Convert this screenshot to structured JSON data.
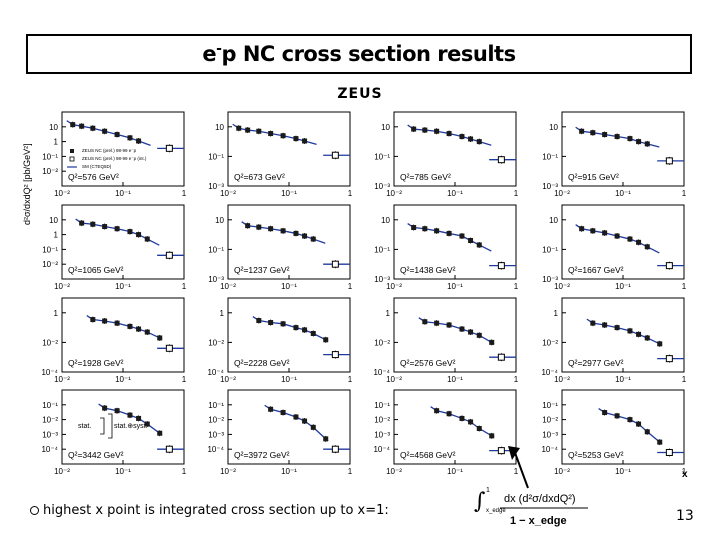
{
  "title": {
    "main": "e p NC cross section results",
    "sup": "-"
  },
  "experiment": "ZEUS",
  "y_axis_label": "d²σ/dxdQ² [pb/GeV²]",
  "x_axis_letter": "x",
  "legend": {
    "filled": "ZEUS NC (prel.) 98-99 e⁻p",
    "open": "ZEUS NC (prel.) 98-99 e⁻p (int.)",
    "line": "SM (CTEQ5D)",
    "stat_label": "stat.",
    "stat_syst_label": "stat.⊕syst."
  },
  "footnote": "highest x point is integrated cross section up to x=1:",
  "formula": {
    "numerator": "dx (d²σ/dxdQ²)",
    "lower_limit": "x_edge",
    "upper_limit": "1",
    "denominator": "1 − x_edge"
  },
  "page_number": "13",
  "colors": {
    "line": "#1f3a9e",
    "marker": "#1a1a1a",
    "open_marker": "#ffffff"
  },
  "chart_data": [
    {
      "type": "scatter",
      "label": "Q²=576 GeV²",
      "log_x": true,
      "log_y": true,
      "xlim": [
        0.01,
        1
      ],
      "ylim": [
        0.001,
        100
      ],
      "yticks": [
        0.01,
        0.1,
        1,
        10
      ],
      "ytick_labels": [
        "10⁻²",
        "10⁻¹",
        "1",
        "10"
      ],
      "x": [
        0.015,
        0.021,
        0.032,
        0.05,
        0.08,
        0.13,
        0.18
      ],
      "y": [
        14,
        11,
        8,
        5,
        3,
        1.8,
        1.1
      ],
      "int_y": 0.35
    },
    {
      "type": "scatter",
      "label": "Q²=673 GeV²",
      "log_x": true,
      "log_y": true,
      "xlim": [
        0.01,
        1
      ],
      "ylim": [
        0.001,
        100
      ],
      "yticks": [
        0.001,
        0.1,
        10
      ],
      "ytick_labels": [
        "10⁻³",
        "10⁻¹",
        "10"
      ],
      "x": [
        0.015,
        0.021,
        0.032,
        0.05,
        0.08,
        0.13,
        0.18
      ],
      "y": [
        8,
        6,
        5,
        3.5,
        2.5,
        1.6,
        1.1
      ],
      "int_y": 0.12
    },
    {
      "type": "scatter",
      "label": "Q²=785 GeV²",
      "log_x": true,
      "log_y": true,
      "xlim": [
        0.01,
        1
      ],
      "ylim": [
        0.001,
        100
      ],
      "yticks": [
        0.001,
        0.1,
        10
      ],
      "ytick_labels": [
        "10⁻³",
        "10⁻¹",
        "10"
      ],
      "x": [
        0.021,
        0.032,
        0.05,
        0.08,
        0.13,
        0.18,
        0.25
      ],
      "y": [
        7,
        6,
        5,
        3.5,
        2.2,
        1.5,
        1.0
      ],
      "int_y": 0.06
    },
    {
      "type": "scatter",
      "label": "Q²=915 GeV²",
      "log_x": true,
      "log_y": true,
      "xlim": [
        0.01,
        1
      ],
      "ylim": [
        0.001,
        100
      ],
      "yticks": [
        0.001,
        0.1,
        10
      ],
      "ytick_labels": [
        "10⁻³",
        "10⁻¹",
        "10"
      ],
      "x": [
        0.021,
        0.032,
        0.05,
        0.08,
        0.13,
        0.18,
        0.25
      ],
      "y": [
        5,
        4,
        3,
        2.2,
        1.6,
        1.0,
        0.7
      ],
      "int_y": 0.05
    },
    {
      "type": "scatter",
      "label": "Q²=1065 GeV²",
      "log_x": true,
      "log_y": true,
      "xlim": [
        0.01,
        1
      ],
      "ylim": [
        0.001,
        100
      ],
      "yticks": [
        0.01,
        0.1,
        1,
        10
      ],
      "ytick_labels": [
        "10⁻²",
        "10⁻¹",
        "1",
        "10"
      ],
      "x": [
        0.021,
        0.032,
        0.05,
        0.08,
        0.13,
        0.18,
        0.25
      ],
      "y": [
        6,
        5,
        3.5,
        2.5,
        1.6,
        1.0,
        0.5
      ],
      "int_y": 0.04
    },
    {
      "type": "scatter",
      "label": "Q²=1237 GeV²",
      "log_x": true,
      "log_y": true,
      "xlim": [
        0.01,
        1
      ],
      "ylim": [
        0.001,
        100
      ],
      "yticks": [
        0.001,
        0.1,
        10
      ],
      "ytick_labels": [
        "10⁻³",
        "10⁻¹",
        "10"
      ],
      "x": [
        0.021,
        0.032,
        0.05,
        0.08,
        0.13,
        0.18,
        0.25
      ],
      "y": [
        4,
        3.2,
        2.5,
        1.8,
        1.2,
        0.8,
        0.5
      ],
      "int_y": 0.01
    },
    {
      "type": "scatter",
      "label": "Q²=1438 GeV²",
      "log_x": true,
      "log_y": true,
      "xlim": [
        0.01,
        1
      ],
      "ylim": [
        0.001,
        100
      ],
      "yticks": [
        0.001,
        0.1,
        10
      ],
      "ytick_labels": [
        "10⁻³",
        "10⁻¹",
        "10"
      ],
      "x": [
        0.021,
        0.032,
        0.05,
        0.08,
        0.13,
        0.18,
        0.25
      ],
      "y": [
        3,
        2.5,
        1.8,
        1.2,
        0.8,
        0.4,
        0.2
      ],
      "int_y": 0.008
    },
    {
      "type": "scatter",
      "label": "Q²=1667 GeV²",
      "log_x": true,
      "log_y": true,
      "xlim": [
        0.01,
        1
      ],
      "ylim": [
        0.001,
        100
      ],
      "yticks": [
        0.001,
        0.1,
        10
      ],
      "ytick_labels": [
        "10⁻³",
        "10⁻¹",
        "10"
      ],
      "x": [
        0.021,
        0.032,
        0.05,
        0.08,
        0.13,
        0.18,
        0.25
      ],
      "y": [
        2.5,
        1.8,
        1.3,
        0.8,
        0.5,
        0.3,
        0.15
      ],
      "int_y": 0.008
    },
    {
      "type": "scatter",
      "label": "Q²=1928 GeV²",
      "log_x": true,
      "log_y": true,
      "xlim": [
        0.01,
        1
      ],
      "ylim": [
        0.0001,
        10
      ],
      "yticks": [
        0.0001,
        0.01,
        1
      ],
      "ytick_labels": [
        "10⁻⁴",
        "10⁻²",
        "1"
      ],
      "x": [
        0.032,
        0.05,
        0.08,
        0.13,
        0.18,
        0.25,
        0.4
      ],
      "y": [
        0.35,
        0.28,
        0.2,
        0.12,
        0.08,
        0.05,
        0.02
      ],
      "int_y": 0.004
    },
    {
      "type": "scatter",
      "label": "Q²=2228 GeV²",
      "log_x": true,
      "log_y": true,
      "xlim": [
        0.01,
        1
      ],
      "ylim": [
        0.0001,
        10
      ],
      "yticks": [
        0.0001,
        0.01,
        1
      ],
      "ytick_labels": [
        "10⁻⁴",
        "10⁻²",
        "1"
      ],
      "x": [
        0.032,
        0.05,
        0.08,
        0.13,
        0.18,
        0.25,
        0.4
      ],
      "y": [
        0.3,
        0.22,
        0.18,
        0.1,
        0.07,
        0.04,
        0.015
      ],
      "int_y": 0.0015
    },
    {
      "type": "scatter",
      "label": "Q²=2576 GeV²",
      "log_x": true,
      "log_y": true,
      "xlim": [
        0.01,
        1
      ],
      "ylim": [
        0.0001,
        10
      ],
      "yticks": [
        0.0001,
        0.01,
        1
      ],
      "ytick_labels": [
        "10⁻⁴",
        "10⁻²",
        "1"
      ],
      "x": [
        0.032,
        0.05,
        0.08,
        0.13,
        0.18,
        0.25,
        0.4
      ],
      "y": [
        0.25,
        0.2,
        0.15,
        0.08,
        0.05,
        0.03,
        0.01
      ],
      "int_y": 0.001
    },
    {
      "type": "scatter",
      "label": "Q²=2977 GeV²",
      "log_x": true,
      "log_y": true,
      "xlim": [
        0.01,
        1
      ],
      "ylim": [
        0.0001,
        10
      ],
      "yticks": [
        0.0001,
        0.01,
        1
      ],
      "ytick_labels": [
        "10⁻⁴",
        "10⁻²",
        "1"
      ],
      "x": [
        0.032,
        0.05,
        0.08,
        0.13,
        0.18,
        0.25,
        0.4
      ],
      "y": [
        0.2,
        0.15,
        0.1,
        0.06,
        0.035,
        0.02,
        0.008
      ],
      "int_y": 0.0008
    },
    {
      "type": "scatter",
      "label": "Q²=3442 GeV²",
      "log_x": true,
      "log_y": true,
      "xlim": [
        0.01,
        1
      ],
      "ylim": [
        1e-05,
        1
      ],
      "yticks": [
        0.0001,
        0.001,
        0.01,
        0.1
      ],
      "ytick_labels": [
        "10⁻⁴",
        "10⁻³",
        "10⁻²",
        "10⁻¹"
      ],
      "x": [
        0.05,
        0.08,
        0.13,
        0.18,
        0.25,
        0.4
      ],
      "y": [
        0.06,
        0.04,
        0.02,
        0.012,
        0.005,
        0.0012
      ],
      "int_y": 0.0001
    },
    {
      "type": "scatter",
      "label": "Q²=3972 GeV²",
      "log_x": true,
      "log_y": true,
      "xlim": [
        0.01,
        1
      ],
      "ylim": [
        1e-05,
        1
      ],
      "yticks": [
        0.0001,
        0.001,
        0.01,
        0.1
      ],
      "ytick_labels": [
        "10⁻⁴",
        "10⁻³",
        "10⁻²",
        "10⁻¹"
      ],
      "x": [
        0.05,
        0.08,
        0.13,
        0.18,
        0.25,
        0.4
      ],
      "y": [
        0.05,
        0.03,
        0.015,
        0.008,
        0.003,
        0.0005
      ],
      "int_y": 0.0001
    },
    {
      "type": "scatter",
      "label": "Q²=4568 GeV²",
      "log_x": true,
      "log_y": true,
      "xlim": [
        0.01,
        1
      ],
      "ylim": [
        1e-05,
        1
      ],
      "yticks": [
        0.0001,
        0.001,
        0.01,
        0.1
      ],
      "ytick_labels": [
        "10⁻⁴",
        "10⁻³",
        "10⁻²",
        "10⁻¹"
      ],
      "x": [
        0.05,
        0.08,
        0.13,
        0.18,
        0.25,
        0.4
      ],
      "y": [
        0.04,
        0.025,
        0.012,
        0.007,
        0.0025,
        0.0008
      ],
      "int_y": 8e-05
    },
    {
      "type": "scatter",
      "label": "Q²=5253 GeV²",
      "log_x": true,
      "log_y": true,
      "xlim": [
        0.01,
        1
      ],
      "ylim": [
        1e-05,
        1
      ],
      "yticks": [
        0.0001,
        0.001,
        0.01,
        0.1
      ],
      "ytick_labels": [
        "10⁻⁴",
        "10⁻³",
        "10⁻²",
        "10⁻¹"
      ],
      "x": [
        0.05,
        0.08,
        0.13,
        0.18,
        0.25,
        0.4
      ],
      "y": [
        0.03,
        0.018,
        0.01,
        0.005,
        0.0015,
        0.0003
      ],
      "int_y": 6e-05
    }
  ],
  "x_tick_labels": [
    "10⁻²",
    "10⁻¹",
    "1"
  ]
}
